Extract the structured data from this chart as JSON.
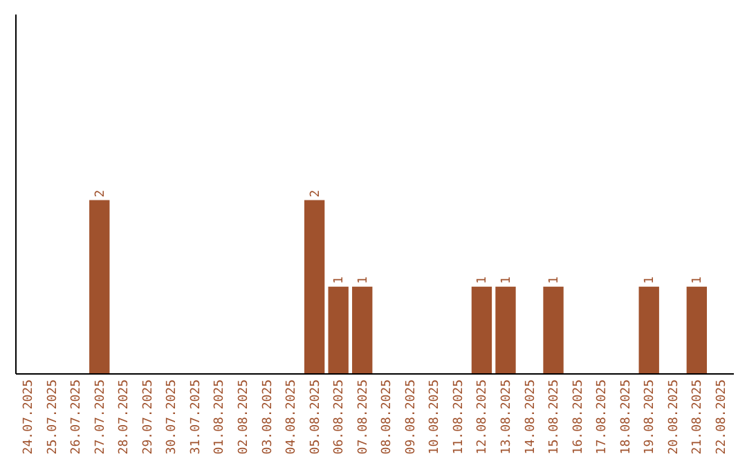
{
  "chart_data": {
    "type": "bar",
    "categories": [
      "24.07.2025",
      "25.07.2025",
      "26.07.2025",
      "27.07.2025",
      "28.07.2025",
      "29.07.2025",
      "30.07.2025",
      "31.07.2025",
      "01.08.2025",
      "02.08.2025",
      "03.08.2025",
      "04.08.2025",
      "05.08.2025",
      "06.08.2025",
      "07.08.2025",
      "08.08.2025",
      "09.08.2025",
      "10.08.2025",
      "11.08.2025",
      "12.08.2025",
      "13.08.2025",
      "14.08.2025",
      "15.08.2025",
      "16.08.2025",
      "17.08.2025",
      "18.08.2025",
      "19.08.2025",
      "20.08.2025",
      "21.08.2025",
      "22.08.2025"
    ],
    "values": [
      0,
      0,
      0,
      2,
      0,
      0,
      0,
      0,
      0,
      0,
      0,
      0,
      2,
      1,
      1,
      0,
      0,
      0,
      0,
      1,
      1,
      0,
      1,
      0,
      0,
      0,
      1,
      0,
      1,
      0
    ],
    "value_labels": [
      null,
      null,
      null,
      "2",
      null,
      null,
      null,
      null,
      null,
      null,
      null,
      null,
      "2",
      "1",
      "1",
      null,
      null,
      null,
      null,
      "1",
      "1",
      null,
      "1",
      null,
      null,
      null,
      "1",
      null,
      "1",
      null
    ],
    "color": "#a0522d",
    "ylim": [
      0,
      4.15
    ],
    "tick_labels": "x",
    "grid": false
  }
}
